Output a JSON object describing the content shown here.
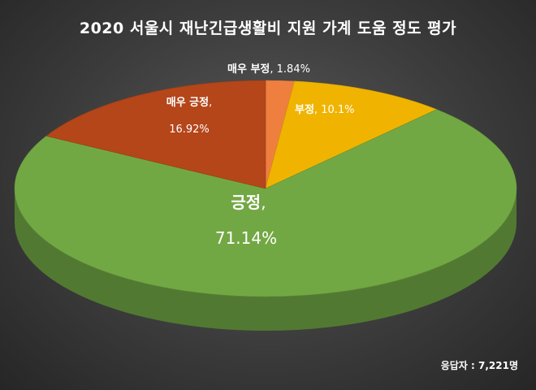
{
  "chart_data": {
    "type": "pie",
    "title": "2020 서울시 재난긴급생활비 지원 가계 도움 정도 평가",
    "slices": [
      {
        "label": "매우 부정",
        "value": 1.84,
        "display": "1.84%",
        "color": "#ef7f3f"
      },
      {
        "label": "부정",
        "value": 10.1,
        "display": "10.1%",
        "color": "#f0b400"
      },
      {
        "label": "긍정",
        "value": 71.14,
        "display": "71.14%",
        "color": "#72a844"
      },
      {
        "label": "매우 긍정",
        "value": 16.92,
        "display": "16.92%",
        "color": "#b4461a"
      }
    ]
  },
  "footnote": "응답자 : 7,221명"
}
